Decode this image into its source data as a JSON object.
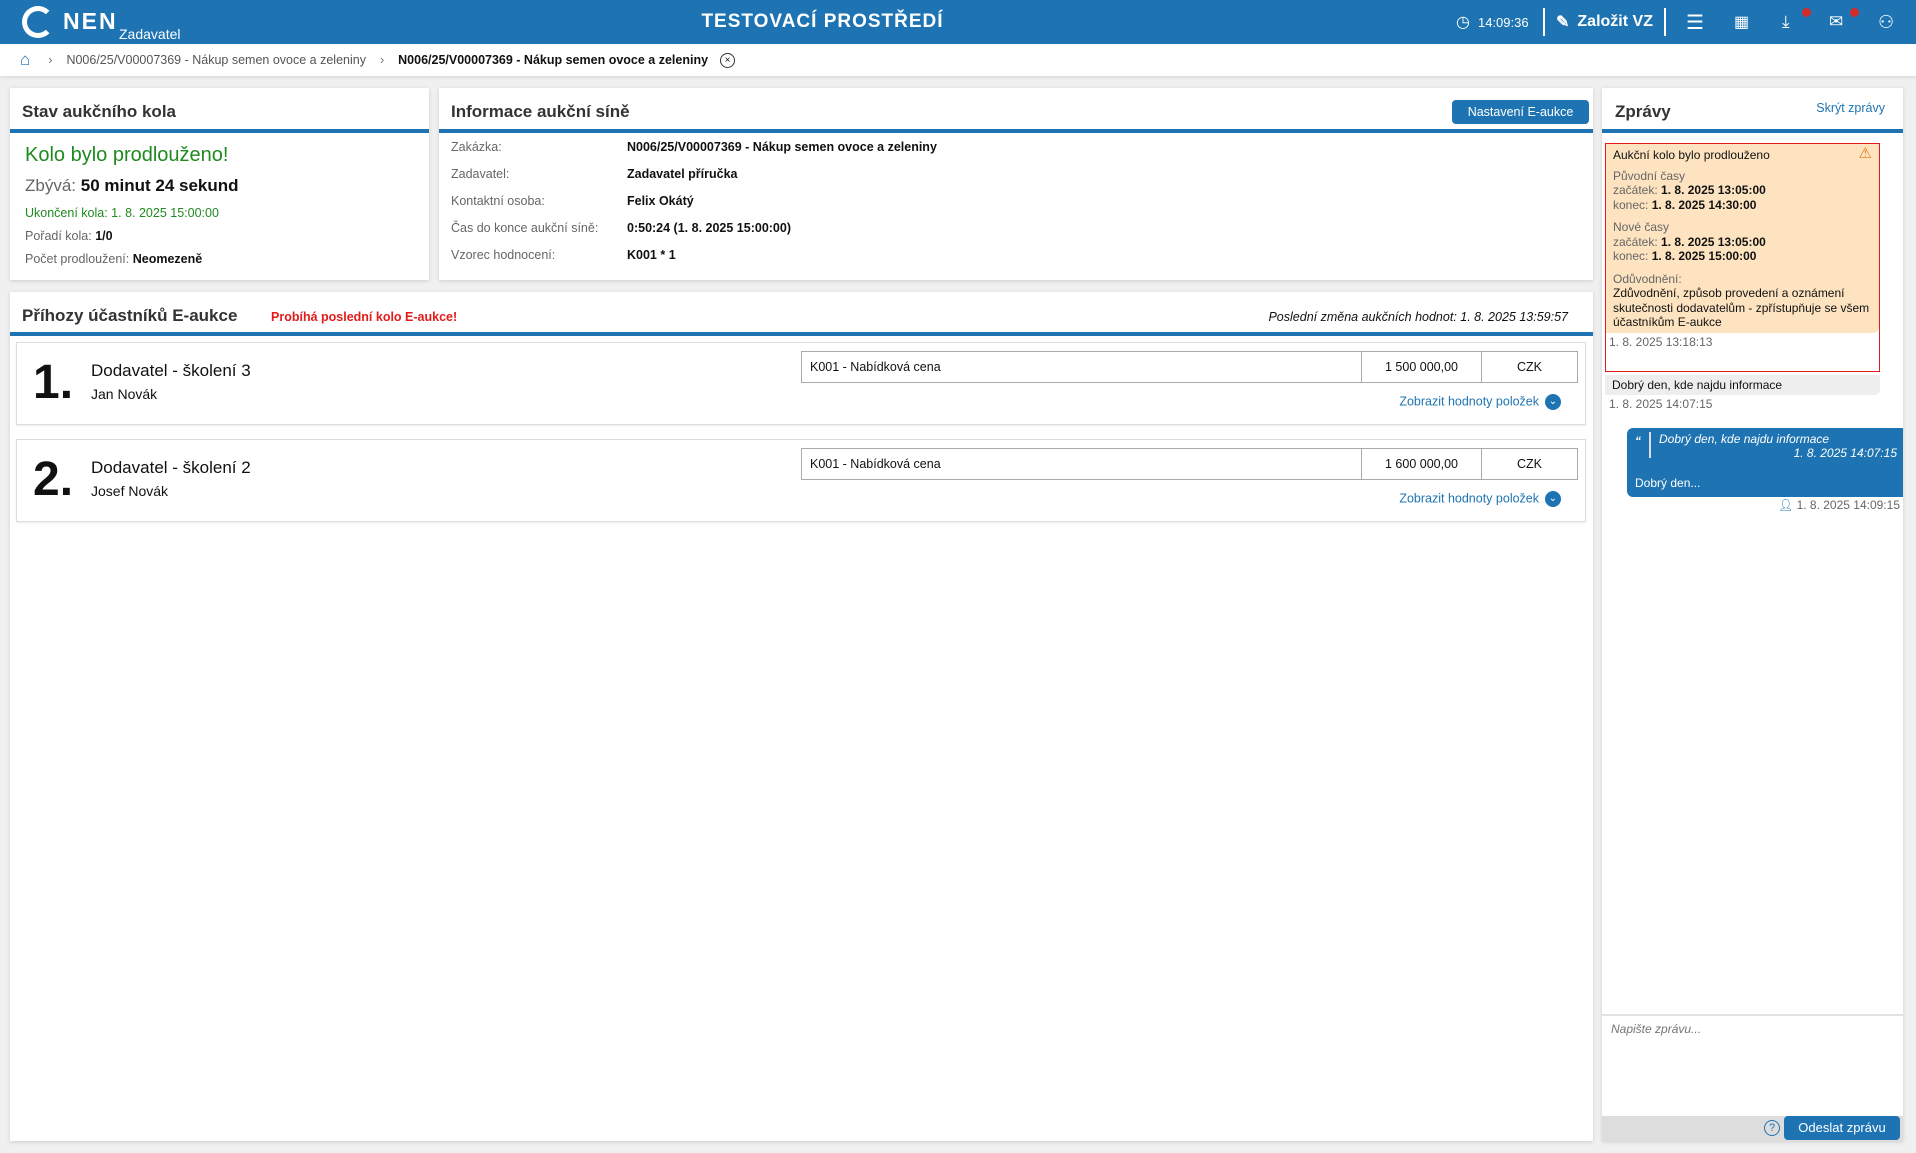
{
  "header": {
    "brand": "NEN",
    "role": "Zadavatel",
    "environment": "TESTOVACÍ PROSTŘEDÍ",
    "time": "14:09:36",
    "create_label": "Založit VZ",
    "icons": [
      "clock-icon",
      "edit-icon",
      "menu-icon",
      "calendar-icon",
      "download-icon",
      "mail-icon",
      "user-icon"
    ],
    "accent": "#1e74b2",
    "notification_color": "#d32a2a"
  },
  "breadcrumb": {
    "items": [
      "N006/25/V00007369 - Nákup semen ovoce a zeleniny",
      "N006/25/V00007369 - Nákup semen ovoce a zeleniny"
    ]
  },
  "status": {
    "title": "Stav aukčního kola",
    "headline": "Kolo bylo prodlouženo!",
    "remaining_label": "Zbývá:",
    "remaining_value": "50 minut 24 sekund",
    "end_label": "Ukončení kola:",
    "end_value": "1. 8. 2025 15:00:00",
    "order_label": "Pořadí kola:",
    "order_value": "1/0",
    "ext_label": "Počet prodloužení:",
    "ext_value": "Neomezeně"
  },
  "info": {
    "title": "Informace aukční síně",
    "settings_button": "Nastavení E-aukce",
    "rows": [
      {
        "label": "Zakázka:",
        "value": "N006/25/V00007369 - Nákup semen ovoce a zeleniny"
      },
      {
        "label": "Zadavatel:",
        "value": "Zadavatel příručka"
      },
      {
        "label": "Kontaktní osoba:",
        "value": "Felix Okátý"
      },
      {
        "label": "Čas do konce aukční síně:",
        "value": "0:50:24 (1. 8. 2025 15:00:00)"
      },
      {
        "label": "Vzorec hodnocení:",
        "value": "K001 * 1"
      }
    ]
  },
  "bids": {
    "title": "Příhozy účastníků E-aukce",
    "warning": "Probíhá poslední kolo E-aukce!",
    "last_change": "Poslední změna aukčních hodnot: 1. 8. 2025 13:59:57",
    "show_items_label": "Zobrazit hodnoty položek",
    "rows": [
      {
        "rank": "1.",
        "supplier": "Dodavatel - školení 3",
        "person": "Jan Novák",
        "criterion": "K001 - Nabídková cena",
        "value": "1 500 000,00",
        "currency": "CZK"
      },
      {
        "rank": "2.",
        "supplier": "Dodavatel - školení 2",
        "person": "Josef Novák",
        "criterion": "K001 - Nabídková cena",
        "value": "1 600 000,00",
        "currency": "CZK"
      }
    ]
  },
  "messages": {
    "title": "Zprávy",
    "hide_label": "Skrýt zprávy",
    "alert": {
      "title": "Aukční kolo bylo prodlouženo",
      "orig_label": "Původní časy",
      "orig_start_label": "začátek:",
      "orig_start": "1. 8. 2025 13:05:00",
      "orig_end_label": "konec:",
      "orig_end": "1. 8. 2025 14:30:00",
      "new_label": "Nové časy",
      "new_start_label": "začátek:",
      "new_start": "1. 8. 2025 13:05:00",
      "new_end_label": "konec:",
      "new_end": "1. 8. 2025 15:00:00",
      "reason_label": "Odůvodnění:",
      "reason": "Zdůvodnění, způsob provedení a oznámení skutečnosti dodavatelům - zpřístupňuje se všem účastníkům E-aukce",
      "time": "1. 8. 2025 13:18:13"
    },
    "incoming": {
      "text": "Dobrý den, kde najdu informace",
      "time": "1. 8. 2025 14:07:15"
    },
    "reply": {
      "quote": "Dobrý den, kde najdu informace",
      "quote_time": "1. 8. 2025 14:07:15",
      "text": "Dobrý den...",
      "time": "1. 8. 2025 14:09:15"
    },
    "input_placeholder": "Napište zprávu...",
    "send_label": "Odeslat zprávu"
  }
}
